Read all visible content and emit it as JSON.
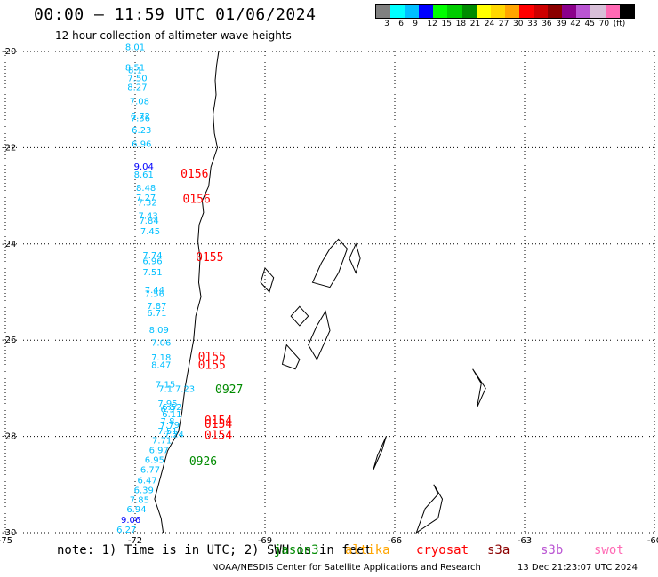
{
  "header": {
    "title": "00:00 – 11:59 UTC 01/06/2024",
    "subtitle": "12 hour collection of altimeter wave heights"
  },
  "legend": {
    "colors": [
      "#808080",
      "#00ffff",
      "#00bfff",
      "#0000ff",
      "#00ff00",
      "#00cd00",
      "#008b00",
      "#ffff00",
      "#ffd700",
      "#ffa500",
      "#ff0000",
      "#cd0000",
      "#8b0000",
      "#8b008b",
      "#ba55d3",
      "#d8bfd8",
      "#ff69b4",
      "#000000"
    ],
    "labels": [
      "3",
      "6",
      "9",
      "12",
      "15",
      "18",
      "21",
      "24",
      "27",
      "30",
      "33",
      "36",
      "39",
      "42",
      "45",
      "70",
      "(ft)"
    ]
  },
  "map": {
    "lon_range": [
      -75,
      -60
    ],
    "lat_range": [
      -30,
      -20
    ],
    "lon_ticks": [
      "-75",
      "-72",
      "-69",
      "-66",
      "-63",
      "-60"
    ],
    "lat_ticks": [
      "-20",
      "-22",
      "-24",
      "-26",
      "-28",
      "-30"
    ]
  },
  "wave_heights": [
    {
      "text": "8.01",
      "lon": -72.0,
      "lat": -19.97,
      "color": "#00bfff"
    },
    {
      "text": "8.51",
      "lon": -72.0,
      "lat": -20.4,
      "color": "#00bfff"
    },
    {
      "text": "8.1",
      "lon": -72.0,
      "lat": -20.45,
      "color": "#00bfff"
    },
    {
      "text": "7.50",
      "lon": -71.95,
      "lat": -20.62,
      "color": "#00bfff"
    },
    {
      "text": "8.27",
      "lon": -71.95,
      "lat": -20.8,
      "color": "#00bfff"
    },
    {
      "text": "7.08",
      "lon": -71.9,
      "lat": -21.1,
      "color": "#00bfff"
    },
    {
      "text": "6.72",
      "lon": -71.88,
      "lat": -21.4,
      "color": "#00bfff"
    },
    {
      "text": "7.36",
      "lon": -71.88,
      "lat": -21.45,
      "color": "#00bfff"
    },
    {
      "text": "6.23",
      "lon": -71.85,
      "lat": -21.7,
      "color": "#00bfff"
    },
    {
      "text": "6.96",
      "lon": -71.85,
      "lat": -21.98,
      "color": "#00bfff"
    },
    {
      "text": "9.04",
      "lon": -71.8,
      "lat": -22.45,
      "color": "#0000ff"
    },
    {
      "text": "8.61",
      "lon": -71.8,
      "lat": -22.62,
      "color": "#00bfff"
    },
    {
      "text": "8.48",
      "lon": -71.75,
      "lat": -22.9,
      "color": "#00bfff"
    },
    {
      "text": "7.27",
      "lon": -71.75,
      "lat": -23.1,
      "color": "#00bfff"
    },
    {
      "text": "7.32",
      "lon": -71.72,
      "lat": -23.2,
      "color": "#00bfff"
    },
    {
      "text": "7.43",
      "lon": -71.7,
      "lat": -23.48,
      "color": "#00bfff"
    },
    {
      "text": "7.84",
      "lon": -71.68,
      "lat": -23.58,
      "color": "#00bfff"
    },
    {
      "text": "7.45",
      "lon": -71.65,
      "lat": -23.8,
      "color": "#00bfff"
    },
    {
      "text": "7.74",
      "lon": -71.6,
      "lat": -24.3,
      "color": "#00bfff"
    },
    {
      "text": "6.96",
      "lon": -71.6,
      "lat": -24.42,
      "color": "#00bfff"
    },
    {
      "text": "7.51",
      "lon": -71.6,
      "lat": -24.65,
      "color": "#00bfff"
    },
    {
      "text": "7.44",
      "lon": -71.55,
      "lat": -25.02,
      "color": "#00bfff"
    },
    {
      "text": "7.56",
      "lon": -71.55,
      "lat": -25.1,
      "color": "#00bfff"
    },
    {
      "text": "7.87",
      "lon": -71.5,
      "lat": -25.35,
      "color": "#00bfff"
    },
    {
      "text": "6.71",
      "lon": -71.5,
      "lat": -25.5,
      "color": "#00bfff"
    },
    {
      "text": "8.09",
      "lon": -71.45,
      "lat": -25.85,
      "color": "#00bfff"
    },
    {
      "text": "7.06",
      "lon": -71.4,
      "lat": -26.12,
      "color": "#00bfff"
    },
    {
      "text": "7.18",
      "lon": -71.4,
      "lat": -26.42,
      "color": "#00bfff"
    },
    {
      "text": "8.47",
      "lon": -71.4,
      "lat": -26.58,
      "color": "#00bfff"
    },
    {
      "text": "7.15",
      "lon": -71.3,
      "lat": -26.98,
      "color": "#00bfff"
    },
    {
      "text": "7.1",
      "lon": -71.3,
      "lat": -27.08,
      "color": "#00bfff"
    },
    {
      "text": "7.23",
      "lon": -70.85,
      "lat": -27.08,
      "color": "#00bfff"
    },
    {
      "text": "7.95",
      "lon": -71.25,
      "lat": -27.38,
      "color": "#00bfff"
    },
    {
      "text": "6.52",
      "lon": -71.15,
      "lat": -27.45,
      "color": "#00bfff"
    },
    {
      "text": "6.9",
      "lon": -71.25,
      "lat": -27.5,
      "color": "#00bfff"
    },
    {
      "text": "6.11",
      "lon": -71.15,
      "lat": -27.6,
      "color": "#00bfff"
    },
    {
      "text": "7.8",
      "lon": -71.25,
      "lat": -27.75,
      "color": "#00bfff"
    },
    {
      "text": "7.79",
      "lon": -71.2,
      "lat": -27.82,
      "color": "#00bfff"
    },
    {
      "text": "7.51",
      "lon": -71.25,
      "lat": -27.95,
      "color": "#00bfff"
    },
    {
      "text": "7.24",
      "lon": -71.1,
      "lat": -28.02,
      "color": "#00bfff"
    },
    {
      "text": "7.71",
      "lon": -71.38,
      "lat": -28.15,
      "color": "#00bfff"
    },
    {
      "text": "6.97",
      "lon": -71.45,
      "lat": -28.35,
      "color": "#00bfff"
    },
    {
      "text": "6.95",
      "lon": -71.55,
      "lat": -28.55,
      "color": "#00bfff"
    },
    {
      "text": "6.77",
      "lon": -71.65,
      "lat": -28.75,
      "color": "#00bfff"
    },
    {
      "text": "6.47",
      "lon": -71.72,
      "lat": -28.98,
      "color": "#00bfff"
    },
    {
      "text": "6.39",
      "lon": -71.8,
      "lat": -29.18,
      "color": "#00bfff"
    },
    {
      "text": "7.85",
      "lon": -71.9,
      "lat": -29.38,
      "color": "#00bfff"
    },
    {
      "text": "6.94",
      "lon": -71.97,
      "lat": -29.58,
      "color": "#00bfff"
    },
    {
      "text": "9.06",
      "lon": -72.1,
      "lat": -29.8,
      "color": "#0000ff"
    },
    {
      "text": "6.27",
      "lon": -72.2,
      "lat": -30.0,
      "color": "#00bfff"
    }
  ],
  "pass_times": [
    {
      "text": "0156",
      "lon": -70.95,
      "lat": -22.62,
      "color": "#ff0000"
    },
    {
      "text": "0156",
      "lon": -70.9,
      "lat": -23.15,
      "color": "#ff0000"
    },
    {
      "text": "0155",
      "lon": -70.6,
      "lat": -24.35,
      "color": "#ff0000"
    },
    {
      "text": "0155",
      "lon": -70.55,
      "lat": -26.42,
      "color": "#ff0000"
    },
    {
      "text": "0155",
      "lon": -70.55,
      "lat": -26.6,
      "color": "#ff0000"
    },
    {
      "text": "0927",
      "lon": -70.15,
      "lat": -27.1,
      "color": "#008b00"
    },
    {
      "text": "0154",
      "lon": -70.4,
      "lat": -27.75,
      "color": "#ff0000"
    },
    {
      "text": "0154",
      "lon": -70.4,
      "lat": -27.82,
      "color": "#ff0000"
    },
    {
      "text": "0154",
      "lon": -70.4,
      "lat": -28.05,
      "color": "#ff0000"
    },
    {
      "text": "0926",
      "lon": -70.75,
      "lat": -28.6,
      "color": "#008b00"
    }
  ],
  "note": {
    "text": "note: 1) Time is in UTC; 2) SWH is in feet",
    "satellites": [
      {
        "name": "jason3",
        "color": "#008b00"
      },
      {
        "name": "altika",
        "color": "#ffa500"
      },
      {
        "name": "cryosat",
        "color": "#ff0000"
      },
      {
        "name": "s3a",
        "color": "#8b0000"
      },
      {
        "name": "s3b",
        "color": "#ba55d3"
      },
      {
        "name": "swot",
        "color": "#ff69b4"
      }
    ]
  },
  "footer": {
    "credit": "NOAA/NESDIS Center for Satellite Applications and Research",
    "timestamp": "13 Dec 21:23:07 UTC 2024"
  }
}
